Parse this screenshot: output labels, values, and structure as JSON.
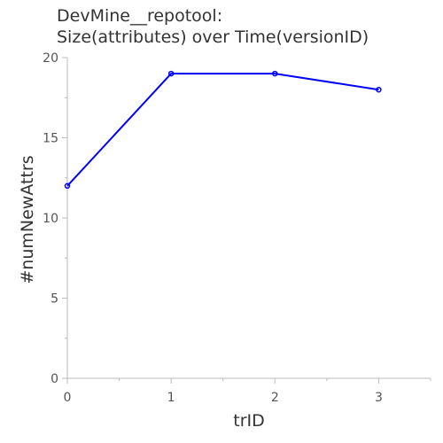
{
  "chart_data": {
    "type": "line",
    "title_lines": [
      "DevMine__repotool:",
      "Size(attributes) over Time(versionID)"
    ],
    "xlabel": "trID",
    "ylabel": "#numNewAttrs",
    "x": [
      0,
      1,
      2,
      3
    ],
    "series": [
      {
        "values": [
          12,
          19,
          19,
          18
        ],
        "color": "#0000ff"
      }
    ],
    "xlim": [
      0,
      3.5
    ],
    "ylim": [
      0,
      20
    ],
    "x_ticks": [
      0,
      1,
      2,
      3
    ],
    "y_ticks": [
      0,
      5,
      10,
      15,
      20
    ],
    "grid": false
  }
}
